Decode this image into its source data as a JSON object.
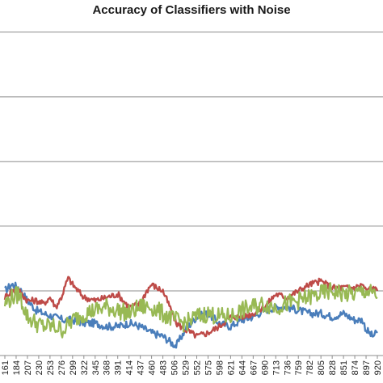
{
  "chart_data": {
    "type": "line",
    "title": "Accuracy of Classifiers with Noise",
    "xlabel": "",
    "ylabel": "",
    "grid": true,
    "ylim": [
      0,
      1
    ],
    "yticks": [
      0.2,
      0.4,
      0.6,
      0.8,
      1.0
    ],
    "xlim": [
      161,
      920
    ],
    "x_tick_labels": [
      161,
      184,
      207,
      230,
      253,
      276,
      299,
      322,
      345,
      368,
      391,
      414,
      437,
      460,
      483,
      506,
      529,
      552,
      575,
      598,
      621,
      644,
      667,
      690,
      713,
      736,
      759,
      782,
      805,
      828,
      851,
      874,
      897,
      920
    ],
    "series": [
      {
        "color": "#4a7ebb",
        "x": [
          161,
          175,
          190,
          207,
          225,
          240,
          260,
          280,
          300,
          322,
          345,
          368,
          391,
          414,
          437,
          460,
          483,
          500,
          510,
          529,
          552,
          575,
          598,
          621,
          644,
          667,
          690,
          713,
          736,
          759,
          782,
          805,
          828,
          851,
          874,
          890,
          897,
          910,
          920
        ],
        "values": [
          0.2,
          0.22,
          0.21,
          0.17,
          0.14,
          0.13,
          0.12,
          0.11,
          0.11,
          0.1,
          0.1,
          0.09,
          0.09,
          0.1,
          0.09,
          0.07,
          0.06,
          0.04,
          0.03,
          0.08,
          0.12,
          0.13,
          0.1,
          0.09,
          0.11,
          0.12,
          0.14,
          0.15,
          0.15,
          0.14,
          0.13,
          0.13,
          0.12,
          0.13,
          0.11,
          0.11,
          0.08,
          0.06,
          0.07
        ]
      },
      {
        "color": "#be4b48",
        "x": [
          161,
          175,
          190,
          207,
          225,
          240,
          253,
          265,
          276,
          290,
          299,
          310,
          322,
          345,
          368,
          391,
          414,
          437,
          450,
          460,
          470,
          483,
          500,
          510,
          529,
          552,
          575,
          598,
          621,
          644,
          667,
          690,
          713,
          736,
          759,
          782,
          805,
          828,
          851,
          874,
          890,
          897,
          910,
          920
        ],
        "values": [
          0.18,
          0.2,
          0.2,
          0.17,
          0.17,
          0.16,
          0.18,
          0.15,
          0.18,
          0.24,
          0.22,
          0.2,
          0.18,
          0.17,
          0.18,
          0.19,
          0.15,
          0.16,
          0.2,
          0.22,
          0.21,
          0.2,
          0.14,
          0.1,
          0.08,
          0.06,
          0.07,
          0.09,
          0.12,
          0.12,
          0.13,
          0.15,
          0.19,
          0.18,
          0.2,
          0.22,
          0.23,
          0.21,
          0.21,
          0.21,
          0.22,
          0.2,
          0.21,
          0.2
        ]
      },
      {
        "color": "#98b954",
        "x": [
          161,
          175,
          190,
          207,
          225,
          240,
          260,
          280,
          300,
          322,
          345,
          368,
          391,
          414,
          437,
          460,
          483,
          506,
          529,
          552,
          575,
          598,
          621,
          644,
          667,
          690,
          713,
          736,
          759,
          782,
          805,
          828,
          851,
          874,
          897,
          910,
          920
        ],
        "values": [
          0.16,
          0.18,
          0.19,
          0.12,
          0.1,
          0.09,
          0.09,
          0.08,
          0.11,
          0.13,
          0.14,
          0.15,
          0.14,
          0.13,
          0.15,
          0.15,
          0.13,
          0.11,
          0.1,
          0.12,
          0.13,
          0.12,
          0.12,
          0.14,
          0.15,
          0.16,
          0.15,
          0.16,
          0.17,
          0.18,
          0.19,
          0.2,
          0.19,
          0.19,
          0.2,
          0.19,
          0.18
        ]
      }
    ]
  }
}
